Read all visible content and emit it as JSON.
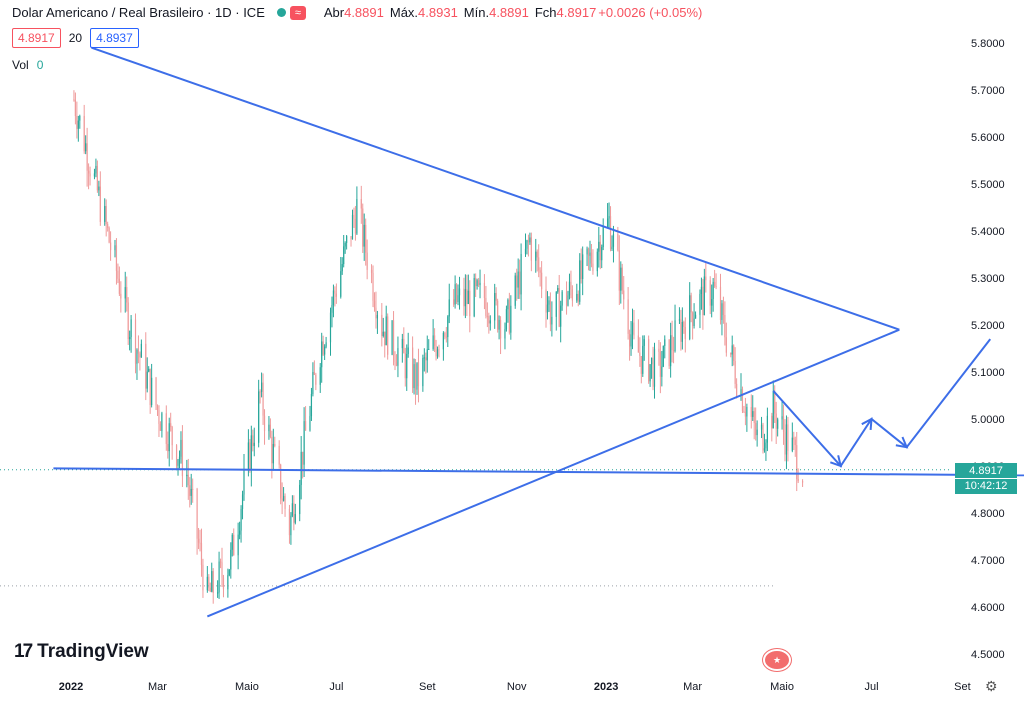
{
  "header": {
    "symbol": "Dolar Americano / Real Brasileiro · 1D · ICE",
    "open_label": "Abr",
    "open": "4.8891",
    "high_label": "Máx.",
    "high": "4.8931",
    "low_label": "Mín.",
    "low": "4.8891",
    "close_label": "Fch",
    "close": "4.8917",
    "change": "+0.0026 (+0.05%)"
  },
  "quotes": {
    "bid": "4.8917",
    "spread": "20",
    "ask": "4.8937"
  },
  "volume": {
    "label": "Vol",
    "value": "0"
  },
  "last_price": {
    "price": "4.8917",
    "countdown": "10:42:12"
  },
  "brand": {
    "name": "TradingView"
  },
  "colors": {
    "up": "#26a69a",
    "down": "#ef9a9a",
    "trendline": "#3d6ee8",
    "accent_last": "#26a69a"
  },
  "chart_data": {
    "type": "candlestick",
    "y_range": [
      4.48,
      5.9
    ],
    "y_ticks": [
      "5.8000",
      "5.7000",
      "5.6000",
      "5.5000",
      "5.4000",
      "5.3000",
      "5.2000",
      "5.1000",
      "5.0000",
      "4.9000",
      "4.8000",
      "4.7000",
      "4.6000",
      "4.5000"
    ],
    "x_ticks": [
      "2022",
      "Mar",
      "Maio",
      "Jul",
      "Set",
      "Nov",
      "2023",
      "Mar",
      "Maio",
      "Jul",
      "Set"
    ],
    "price_path": [
      {
        "date": "2022-01-03",
        "price": 5.68
      },
      {
        "date": "2022-01-20",
        "price": 5.47
      },
      {
        "date": "2022-02-10",
        "price": 5.2
      },
      {
        "date": "2022-03-01",
        "price": 5.02
      },
      {
        "date": "2022-03-20",
        "price": 4.9
      },
      {
        "date": "2022-04-04",
        "price": 4.62
      },
      {
        "date": "2022-04-20",
        "price": 4.7
      },
      {
        "date": "2022-05-10",
        "price": 5.05
      },
      {
        "date": "2022-05-30",
        "price": 4.77
      },
      {
        "date": "2022-06-20",
        "price": 5.15
      },
      {
        "date": "2022-07-15",
        "price": 5.45
      },
      {
        "date": "2022-08-01",
        "price": 5.2
      },
      {
        "date": "2022-08-25",
        "price": 5.08
      },
      {
        "date": "2022-09-20",
        "price": 5.25
      },
      {
        "date": "2022-10-10",
        "price": 5.26
      },
      {
        "date": "2022-10-25",
        "price": 5.2
      },
      {
        "date": "2022-11-10",
        "price": 5.38
      },
      {
        "date": "2022-11-25",
        "price": 5.22
      },
      {
        "date": "2022-12-15",
        "price": 5.3
      },
      {
        "date": "2023-01-03",
        "price": 5.42
      },
      {
        "date": "2023-01-20",
        "price": 5.15
      },
      {
        "date": "2023-02-05",
        "price": 5.1
      },
      {
        "date": "2023-02-25",
        "price": 5.22
      },
      {
        "date": "2023-03-15",
        "price": 5.28
      },
      {
        "date": "2023-04-01",
        "price": 5.08
      },
      {
        "date": "2023-04-15",
        "price": 4.95
      },
      {
        "date": "2023-04-25",
        "price": 5.02
      },
      {
        "date": "2023-05-15",
        "price": 4.89
      }
    ],
    "trendlines": [
      {
        "from": {
          "date": "2022-01-15",
          "price": 5.79
        },
        "to": {
          "date": "2023-07-20",
          "price": 5.19
        }
      },
      {
        "from": {
          "date": "2022-04-04",
          "price": 4.58
        },
        "to": {
          "date": "2023-07-20",
          "price": 5.19
        }
      },
      {
        "from": {
          "date": "2021-12-20",
          "price": 4.895
        },
        "to": {
          "date": "2023-10-25",
          "price": 4.88
        }
      }
    ],
    "projection": [
      {
        "date": "2023-04-25",
        "price": 5.06
      },
      {
        "date": "2023-06-10",
        "price": 4.9
      },
      {
        "date": "2023-07-01",
        "price": 5.0
      },
      {
        "date": "2023-07-25",
        "price": 4.94
      },
      {
        "date": "2023-09-20",
        "price": 5.17
      }
    ],
    "dotted_levels": [
      4.892,
      4.645
    ]
  }
}
